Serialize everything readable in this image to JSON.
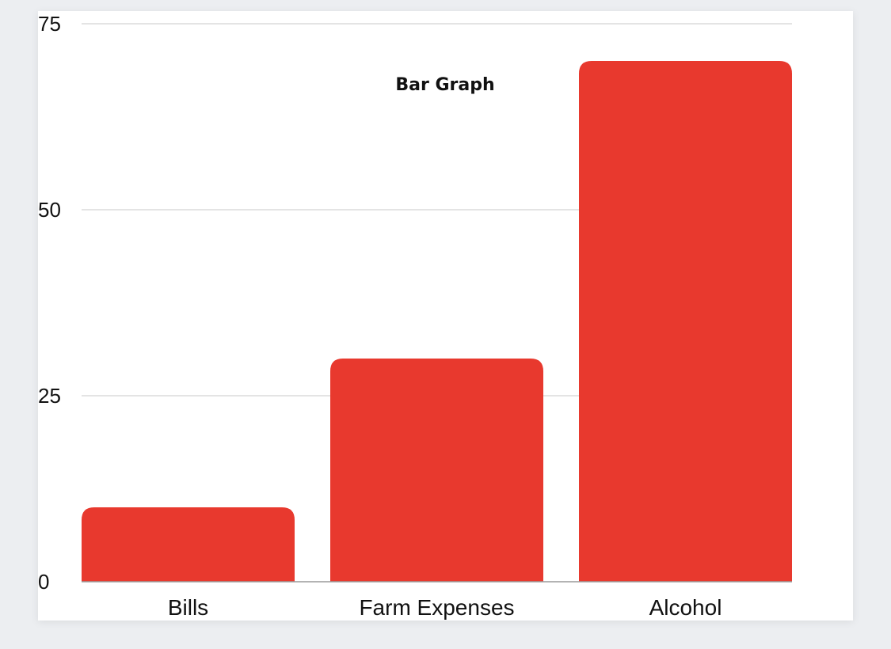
{
  "chart_data": {
    "type": "bar",
    "title": "Bar Graph",
    "xlabel": "",
    "ylabel": "",
    "categories": [
      "Bills",
      "Farm Expenses",
      "Alcohol"
    ],
    "values": [
      10,
      30,
      70
    ],
    "ylim": [
      0,
      75
    ],
    "yticks": [
      0,
      25,
      50,
      75
    ],
    "grid": true,
    "legend": "none",
    "colors": {
      "bar": "#e8392e",
      "grid": "#dcdcdc",
      "axis": "#9a9a9a"
    }
  }
}
